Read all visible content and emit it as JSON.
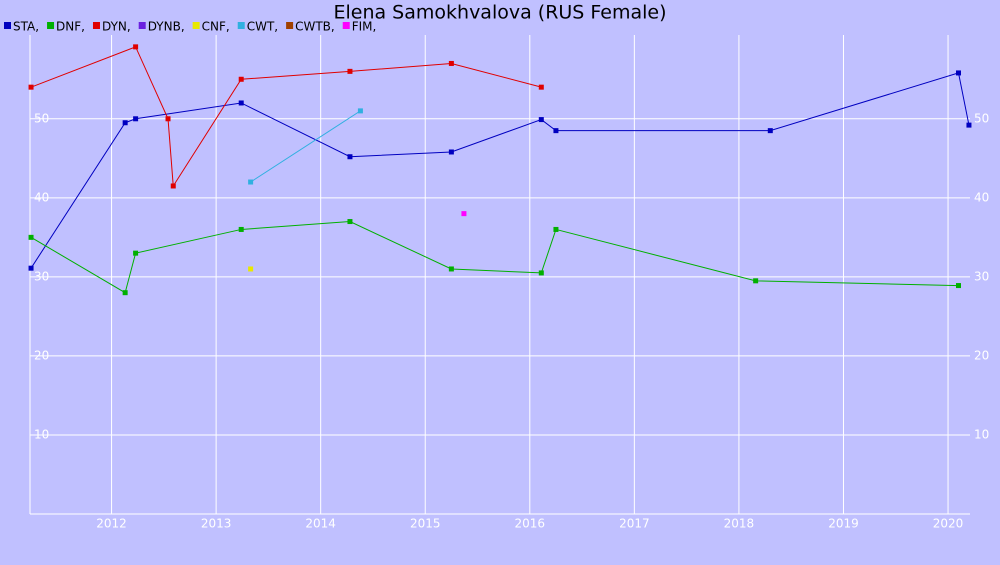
{
  "chart_data": {
    "type": "line",
    "title": "Elena Samokhvalova (RUS Female)",
    "xlim": [
      2011.22,
      2020.21
    ],
    "xticks": [
      2012,
      2013,
      2014,
      2015,
      2016,
      2017,
      2018,
      2019,
      2020
    ],
    "ylim": [
      0,
      60.6
    ],
    "yticks": [
      10,
      20,
      30,
      40,
      50
    ],
    "grid": true,
    "series": [
      {
        "name": "STA,",
        "color": "#0000c0",
        "x": [
          2011.23,
          2012.13,
          2012.23,
          2013.24,
          2014.28,
          2015.25,
          2016.11,
          2016.25,
          2018.3,
          2020.1,
          2020.2
        ],
        "values": [
          31.1,
          49.5,
          50,
          52,
          45.2,
          45.8,
          49.9,
          48.5,
          48.5,
          55.8,
          49.2
        ]
      },
      {
        "name": "DNF,",
        "color": "#00b000",
        "x": [
          2011.23,
          2012.13,
          2012.23,
          2013.24,
          2014.28,
          2015.25,
          2016.11,
          2016.25,
          2018.16,
          2020.1
        ],
        "values": [
          35,
          28,
          33,
          36,
          37,
          31,
          30.5,
          36,
          29.5,
          28.9
        ]
      },
      {
        "name": "DYN,",
        "color": "#e00000",
        "x": [
          2011.23,
          2012.23,
          2012.54,
          2012.59,
          2013.24,
          2014.28,
          2015.25,
          2016.11
        ],
        "values": [
          54,
          59.1,
          50,
          41.5,
          55,
          56,
          57,
          54
        ]
      },
      {
        "name": "DYNB,",
        "color": "#6a1fe0",
        "x": [],
        "values": []
      },
      {
        "name": "CNF,",
        "color": "#e8e800",
        "x": [
          2013.33
        ],
        "values": [
          31
        ]
      },
      {
        "name": "CWT,",
        "color": "#30b0e0",
        "x": [
          2013.33,
          2014.38
        ],
        "values": [
          42,
          51
        ]
      },
      {
        "name": "CWTB,",
        "color": "#a04000",
        "x": [],
        "values": []
      },
      {
        "name": "FIM,",
        "color": "#ff00ff",
        "x": [
          2015.37
        ],
        "values": [
          38
        ]
      }
    ]
  }
}
